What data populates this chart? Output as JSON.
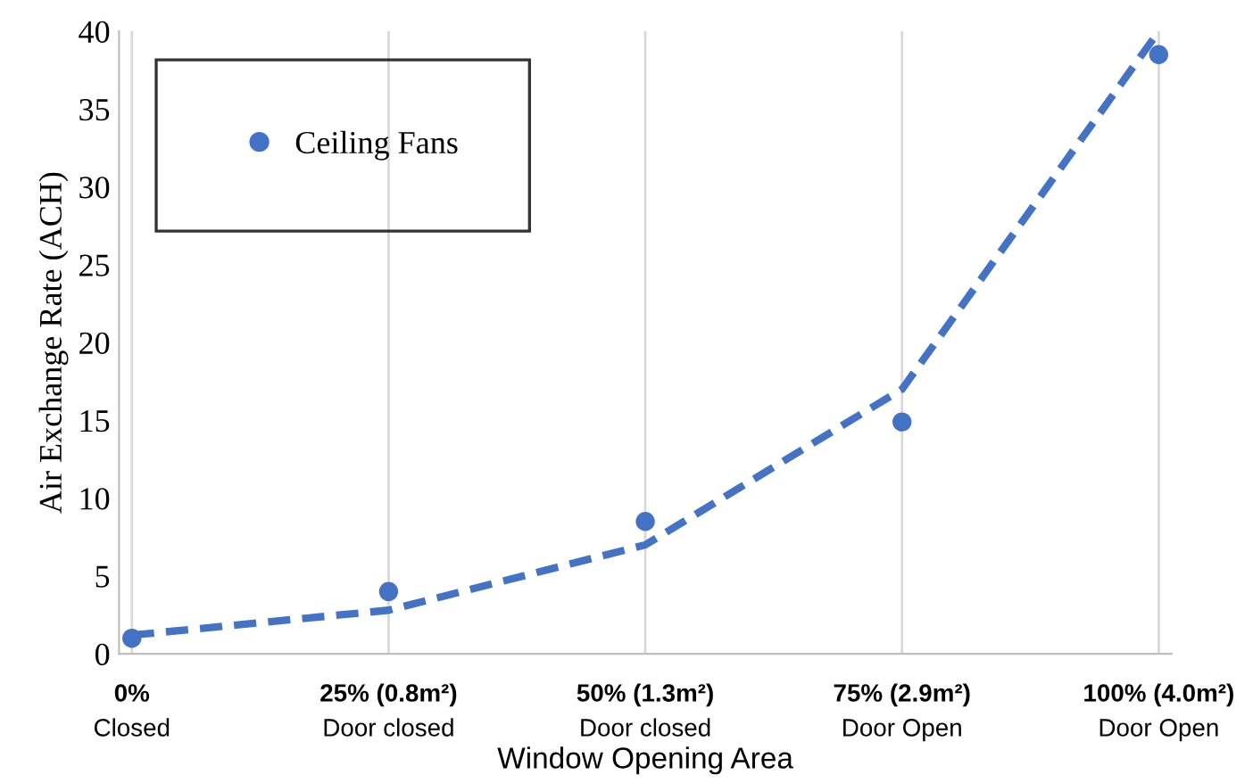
{
  "chart_data": {
    "type": "scatter",
    "xlabel": "Window Opening Area",
    "ylabel": "Air Exchange Rate (ACH)",
    "categories": [
      "0%\nClosed",
      "25% (0.8m²)\nDoor closed",
      "50% (1.3m²)\nDoor closed",
      "75% (2.9m²)\nDoor Open",
      "100% (4.0m²)\nDoor Open"
    ],
    "series": [
      {
        "name": "Ceiling Fans",
        "color": "#4472c4",
        "values": [
          1.0,
          4.0,
          8.5,
          14.9,
          38.5
        ],
        "marker": "circle"
      },
      {
        "type": "line",
        "color": "#4472c4",
        "line_style": "dashed",
        "marker": "none",
        "values": [
          1.2,
          2.8,
          7.0,
          17,
          40
        ]
      }
    ],
    "ylim": [
      0,
      40
    ],
    "yticks": [
      0,
      5,
      10,
      15,
      20,
      25,
      30,
      35,
      40
    ],
    "grid": "x",
    "legend": "top left"
  }
}
